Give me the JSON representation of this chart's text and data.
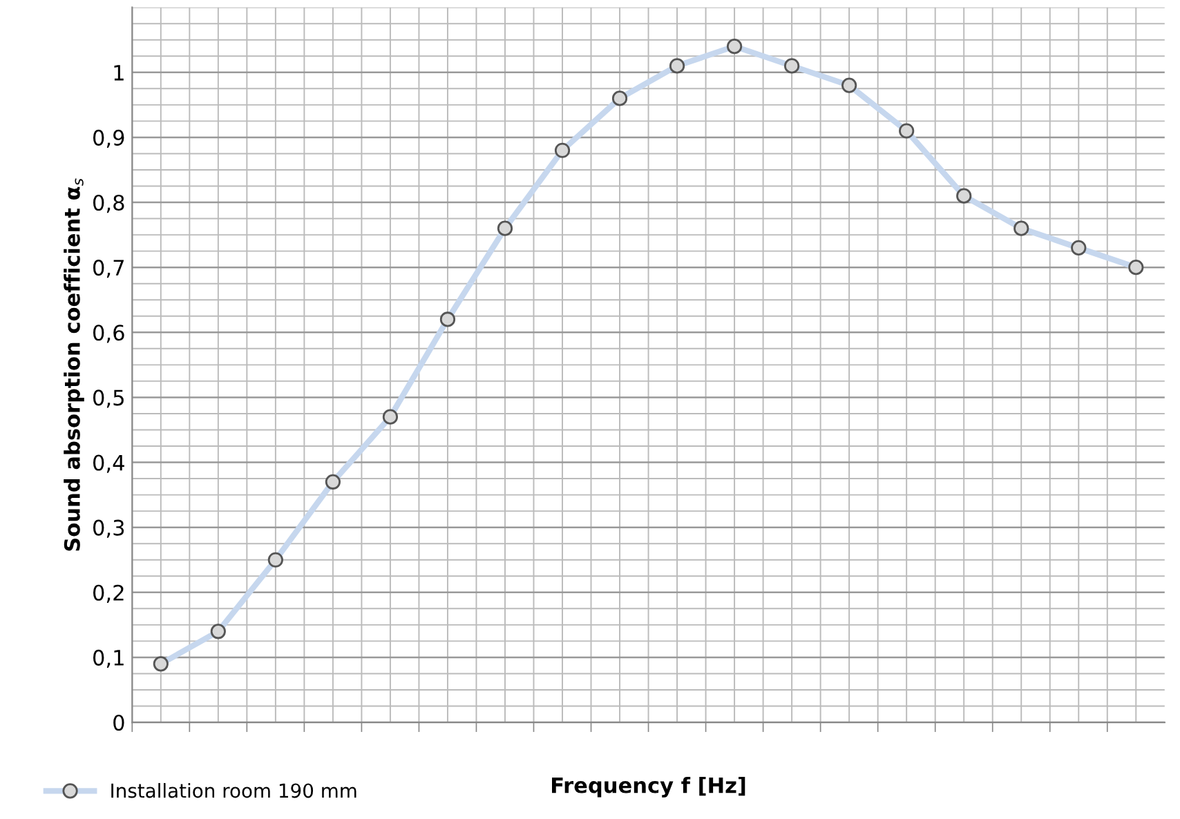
{
  "chart_data": {
    "type": "line",
    "xlabel": "Frequency f [Hz]",
    "ylabel": "Sound absorption coefficient α$_{s}$",
    "categories": [
      null,
      null,
      null,
      null,
      null,
      null,
      null,
      null,
      null,
      null,
      null,
      null,
      null,
      null,
      null,
      null,
      null,
      null
    ],
    "series": [
      {
        "name": "Installation room 190 mm",
        "color": "#c6d7ee",
        "values": [
          0.09,
          0.14,
          0.25,
          0.37,
          0.47,
          0.62,
          0.76,
          0.88,
          0.96,
          1.01,
          1.04,
          1.01,
          0.98,
          0.91,
          0.81,
          0.76,
          0.73,
          0.7
        ]
      }
    ],
    "ylim": [
      0,
      1.1
    ],
    "yticks": [
      0,
      {
        "value": 0.1,
        "label": "0,1"
      },
      {
        "value": 0.2,
        "label": "0,2"
      },
      {
        "value": 0.3,
        "label": "0,3"
      },
      {
        "value": 0.4,
        "label": "0,4"
      },
      {
        "value": 0.5,
        "label": "0,5"
      },
      {
        "value": 0.6,
        "label": "0,6"
      },
      {
        "value": 0.7,
        "label": "0,7"
      },
      {
        "value": 0.8,
        "label": "0,8"
      },
      {
        "value": 0.9,
        "label": "0,9"
      },
      1
    ],
    "grid": true,
    "legend": "bottom left",
    "marker": "circle",
    "line_style": "solid"
  }
}
